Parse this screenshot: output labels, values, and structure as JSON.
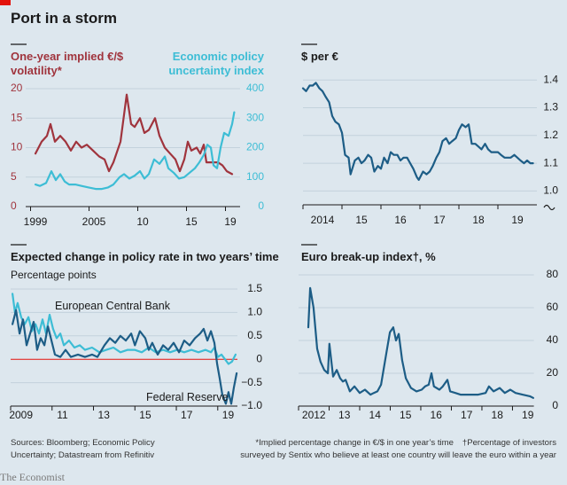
{
  "title": "Port in a storm",
  "chart_data": [
    {
      "type": "line",
      "y_label": [
        "One-year implied €/$",
        "volatility*"
      ],
      "y2_label": [
        "Economic policy",
        "uncertainty index"
      ],
      "xlim": [
        1998.5,
        2020.5
      ],
      "xticks": [
        1999,
        2005,
        {
          "value": 2010,
          "label": "10"
        },
        {
          "value": 2015,
          "label": "15"
        },
        {
          "value": 2019,
          "label": "19"
        }
      ],
      "ylim": [
        0,
        20
      ],
      "yticks": [
        0,
        5,
        10,
        15,
        20
      ],
      "y2lim": [
        0,
        400
      ],
      "y2ticks": [
        0,
        100,
        200,
        300,
        400
      ],
      "grid": true,
      "series": [
        {
          "color": "#a0343d",
          "x": [
            1999.5,
            2000.14,
            2000.68,
            2001.05,
            2001.5,
            2002.05,
            2002.59,
            2003.14,
            2003.68,
            2004.23,
            2004.77,
            2005.41,
            2006.05,
            2006.59,
            2007.05,
            2007.5,
            2008.23,
            2008.86,
            2009.32,
            2009.68,
            2010.23,
            2010.68,
            2011.14,
            2011.77,
            2012.23,
            2012.77,
            2013.32,
            2013.86,
            2014.32,
            2014.77,
            2015.14,
            2015.5,
            2016.05,
            2016.41,
            2016.77,
            2017.05,
            2017.68,
            2018.23,
            2018.68,
            2019.14,
            2019.68
          ],
          "values": [
            9,
            11,
            12,
            14,
            11,
            12,
            11,
            9.5,
            11,
            10,
            10.5,
            9.5,
            8.5,
            8,
            6,
            7.5,
            11,
            19,
            14,
            13.5,
            15,
            12.5,
            13,
            15,
            12,
            10,
            9,
            8,
            6,
            8,
            11,
            9.5,
            10,
            9,
            10.5,
            7.5,
            7.5,
            7.5,
            7,
            6,
            5.5
          ]
        },
        {
          "color": "#3dbdd5",
          "axis": "y2",
          "x": [
            1999.5,
            1999.95,
            2000.59,
            2001.14,
            2001.59,
            2002.05,
            2002.5,
            2002.95,
            2003.59,
            2004.23,
            2004.95,
            2005.68,
            2006.32,
            2006.95,
            2007.5,
            2008.14,
            2008.59,
            2009.14,
            2009.68,
            2010.23,
            2010.68,
            2011.14,
            2011.68,
            2012.23,
            2012.77,
            2013.14,
            2013.68,
            2014.23,
            2014.77,
            2015.32,
            2015.86,
            2016.32,
            2016.77,
            2017.14,
            2017.5,
            2017.77,
            2018.14,
            2018.5,
            2018.86,
            2019.32,
            2019.68,
            2019.9
          ],
          "values": [
            75,
            70,
            80,
            120,
            90,
            110,
            85,
            75,
            75,
            70,
            65,
            60,
            60,
            65,
            75,
            100,
            110,
            95,
            105,
            120,
            95,
            110,
            160,
            145,
            170,
            130,
            115,
            95,
            100,
            115,
            130,
            150,
            175,
            210,
            200,
            140,
            130,
            200,
            250,
            240,
            280,
            320
          ]
        }
      ]
    },
    {
      "type": "line",
      "title": "$ per €",
      "xlim": [
        2014,
        2020
      ],
      "xticks": [
        2014,
        {
          "value": 2015,
          "label": "15"
        },
        {
          "value": 2016,
          "label": "16"
        },
        {
          "value": 2017,
          "label": "17"
        },
        {
          "value": 2018,
          "label": "18"
        },
        {
          "value": 2019,
          "label": "19"
        }
      ],
      "ylim": [
        0.95,
        1.42
      ],
      "yticks": [
        {
          "value": 1,
          "label": "1.0"
        },
        1.1,
        1.2,
        1.3,
        1.4
      ],
      "grid": true,
      "series": [
        {
          "color": "#1d5d86",
          "x": [
            2014,
            2014.08,
            2014.17,
            2014.25,
            2014.33,
            2014.42,
            2014.5,
            2014.58,
            2014.67,
            2014.75,
            2014.83,
            2014.92,
            2015,
            2015.08,
            2015.17,
            2015.22,
            2015.33,
            2015.42,
            2015.5,
            2015.58,
            2015.67,
            2015.75,
            2015.83,
            2015.92,
            2016,
            2016.08,
            2016.17,
            2016.25,
            2016.33,
            2016.42,
            2016.5,
            2016.58,
            2016.67,
            2016.75,
            2016.83,
            2016.92,
            2016.97,
            2017.08,
            2017.17,
            2017.25,
            2017.33,
            2017.42,
            2017.5,
            2017.58,
            2017.67,
            2017.75,
            2017.83,
            2017.92,
            2018,
            2018.08,
            2018.17,
            2018.25,
            2018.33,
            2018.42,
            2018.5,
            2018.58,
            2018.67,
            2018.75,
            2018.83,
            2018.92,
            2019,
            2019.08,
            2019.17,
            2019.25,
            2019.33,
            2019.42,
            2019.5,
            2019.58,
            2019.67,
            2019.75,
            2019.83,
            2019.9
          ],
          "values": [
            1.37,
            1.36,
            1.38,
            1.38,
            1.39,
            1.37,
            1.36,
            1.34,
            1.32,
            1.27,
            1.25,
            1.24,
            1.21,
            1.13,
            1.12,
            1.06,
            1.11,
            1.12,
            1.1,
            1.11,
            1.13,
            1.12,
            1.07,
            1.09,
            1.08,
            1.12,
            1.1,
            1.14,
            1.13,
            1.13,
            1.11,
            1.12,
            1.12,
            1.1,
            1.08,
            1.05,
            1.04,
            1.07,
            1.06,
            1.07,
            1.09,
            1.12,
            1.14,
            1.18,
            1.19,
            1.17,
            1.18,
            1.19,
            1.22,
            1.24,
            1.23,
            1.24,
            1.17,
            1.17,
            1.16,
            1.15,
            1.17,
            1.15,
            1.14,
            1.14,
            1.14,
            1.13,
            1.12,
            1.12,
            1.12,
            1.13,
            1.12,
            1.11,
            1.1,
            1.11,
            1.1,
            1.1
          ]
        }
      ]
    },
    {
      "type": "line",
      "title": "Expected change in policy rate in two years’ time",
      "subtitle": "Percentage points",
      "xlim": [
        2009,
        2019.95
      ],
      "xticks": [
        2009,
        {
          "value": 2011,
          "label": "11"
        },
        {
          "value": 2013,
          "label": "13"
        },
        {
          "value": 2015,
          "label": "15"
        },
        {
          "value": 2017,
          "label": "17"
        },
        {
          "value": 2019,
          "label": "19"
        }
      ],
      "ylim": [
        -1,
        1.5
      ],
      "yticks": [
        1.5,
        {
          "value": 1,
          "label": "1.0"
        },
        0.5,
        0,
        {
          "value": -0.5,
          "label": "−0.5"
        },
        {
          "value": -1,
          "label": "−1.0"
        }
      ],
      "grid": true,
      "series": [
        {
          "name": "European Central Bank",
          "color": "#3dbdd5",
          "x": [
            2009.09,
            2009.21,
            2009.34,
            2009.51,
            2009.68,
            2009.86,
            2010.03,
            2010.2,
            2010.37,
            2010.54,
            2010.71,
            2010.88,
            2011.05,
            2011.22,
            2011.4,
            2011.57,
            2011.82,
            2012.08,
            2012.34,
            2012.59,
            2012.93,
            2013.28,
            2013.62,
            2013.96,
            2014.3,
            2014.65,
            2014.99,
            2015.33,
            2015.67,
            2016.01,
            2016.36,
            2016.7,
            2017.04,
            2017.38,
            2017.73,
            2018.07,
            2018.41,
            2018.67,
            2018.84,
            2019.01,
            2019.18,
            2019.35,
            2019.52,
            2019.69,
            2019.86
          ],
          "values": [
            1.4,
            1.0,
            1.2,
            0.9,
            0.75,
            0.9,
            0.6,
            0.75,
            0.55,
            0.85,
            0.55,
            0.95,
            0.65,
            0.45,
            0.55,
            0.3,
            0.4,
            0.25,
            0.3,
            0.2,
            0.25,
            0.15,
            0.2,
            0.25,
            0.15,
            0.2,
            0.2,
            0.15,
            0.25,
            0.15,
            0.2,
            0.15,
            0.2,
            0.15,
            0.2,
            0.15,
            0.2,
            0.15,
            0.25,
            0.05,
            0.1,
            0.0,
            -0.1,
            -0.05,
            0.1
          ]
        },
        {
          "name": "Federal Reserve",
          "color": "#1d5d86",
          "x": [
            2009.09,
            2009.26,
            2009.43,
            2009.6,
            2009.77,
            2009.94,
            2010.11,
            2010.28,
            2010.45,
            2010.63,
            2010.8,
            2010.97,
            2011.14,
            2011.4,
            2011.65,
            2011.91,
            2012.25,
            2012.59,
            2012.93,
            2013.19,
            2013.53,
            2013.79,
            2014.05,
            2014.3,
            2014.56,
            2014.82,
            2015,
            2015.24,
            2015.5,
            2015.67,
            2015.84,
            2016.1,
            2016.36,
            2016.61,
            2016.87,
            2017.13,
            2017.38,
            2017.64,
            2017.9,
            2018.15,
            2018.32,
            2018.5,
            2018.67,
            2018.84,
            2018.97,
            2019.09,
            2019.22,
            2019.39,
            2019.52,
            2019.65,
            2019.78,
            2019.91
          ],
          "values": [
            0.75,
            1.05,
            0.55,
            0.85,
            0.3,
            0.55,
            0.8,
            0.2,
            0.45,
            0.3,
            0.7,
            0.4,
            0.1,
            0.05,
            0.2,
            0.05,
            0.1,
            0.05,
            0.1,
            0.05,
            0.3,
            0.45,
            0.35,
            0.5,
            0.4,
            0.55,
            0.3,
            0.6,
            0.45,
            0.2,
            0.35,
            0.1,
            0.3,
            0.2,
            0.35,
            0.15,
            0.4,
            0.3,
            0.45,
            0.55,
            0.65,
            0.4,
            0.6,
            0.35,
            -0.1,
            -0.4,
            -0.75,
            -0.95,
            -0.7,
            -0.95,
            -0.6,
            -0.3
          ]
        }
      ]
    },
    {
      "type": "line",
      "title": "Euro break-up index†, %",
      "xlim": [
        2012,
        2019.7
      ],
      "xticks": [
        2012,
        {
          "value": 2013,
          "label": "13"
        },
        {
          "value": 2014,
          "label": "14"
        },
        {
          "value": 2015,
          "label": "15"
        },
        {
          "value": 2016,
          "label": "16"
        },
        {
          "value": 2017,
          "label": "17"
        },
        {
          "value": 2018,
          "label": "18"
        },
        {
          "value": 2019,
          "label": "19"
        }
      ],
      "ylim": [
        0,
        80
      ],
      "yticks": [
        0,
        20,
        40,
        60,
        80
      ],
      "grid": true,
      "series": [
        {
          "color": "#1d5d86",
          "x": [
            2012.32,
            2012.38,
            2012.49,
            2012.61,
            2012.72,
            2012.84,
            2012.96,
            2013.01,
            2013.13,
            2013.25,
            2013.36,
            2013.45,
            2013.54,
            2013.68,
            2013.83,
            2014.0,
            2014.17,
            2014.35,
            2014.46,
            2014.58,
            2014.7,
            2014.87,
            2014.99,
            2015.1,
            2015.19,
            2015.28,
            2015.39,
            2015.51,
            2015.68,
            2015.86,
            2016.03,
            2016.14,
            2016.26,
            2016.35,
            2016.43,
            2016.61,
            2016.72,
            2016.87,
            2016.96,
            2017.13,
            2017.3,
            2017.59,
            2017.88,
            2018.12,
            2018.23,
            2018.38,
            2018.58,
            2018.75,
            2018.93,
            2019.1,
            2019.33,
            2019.57,
            2019.68
          ],
          "values": [
            48,
            72,
            60,
            35,
            27,
            22,
            20,
            38,
            18,
            22,
            17,
            15,
            16,
            9,
            12,
            8,
            10,
            7,
            8,
            9,
            13,
            32,
            45,
            48,
            40,
            44,
            28,
            17,
            11,
            9,
            10,
            12,
            13,
            20,
            12,
            10,
            12,
            16,
            9,
            8,
            7,
            7,
            7,
            8,
            12,
            9,
            11,
            8,
            10,
            8,
            7,
            6,
            5
          ]
        }
      ]
    }
  ],
  "footer": {
    "sources": [
      "Sources: Bloomberg; Economic Policy",
      "Uncertainty; Datastream from Refinitiv"
    ],
    "notes": [
      "*Implied percentage change in €/$ in one year’s time",
      "†Percentage of investors",
      "surveyed by Sentix who believe at least one country will leave the euro within a year"
    ],
    "brand": "The Economist"
  }
}
